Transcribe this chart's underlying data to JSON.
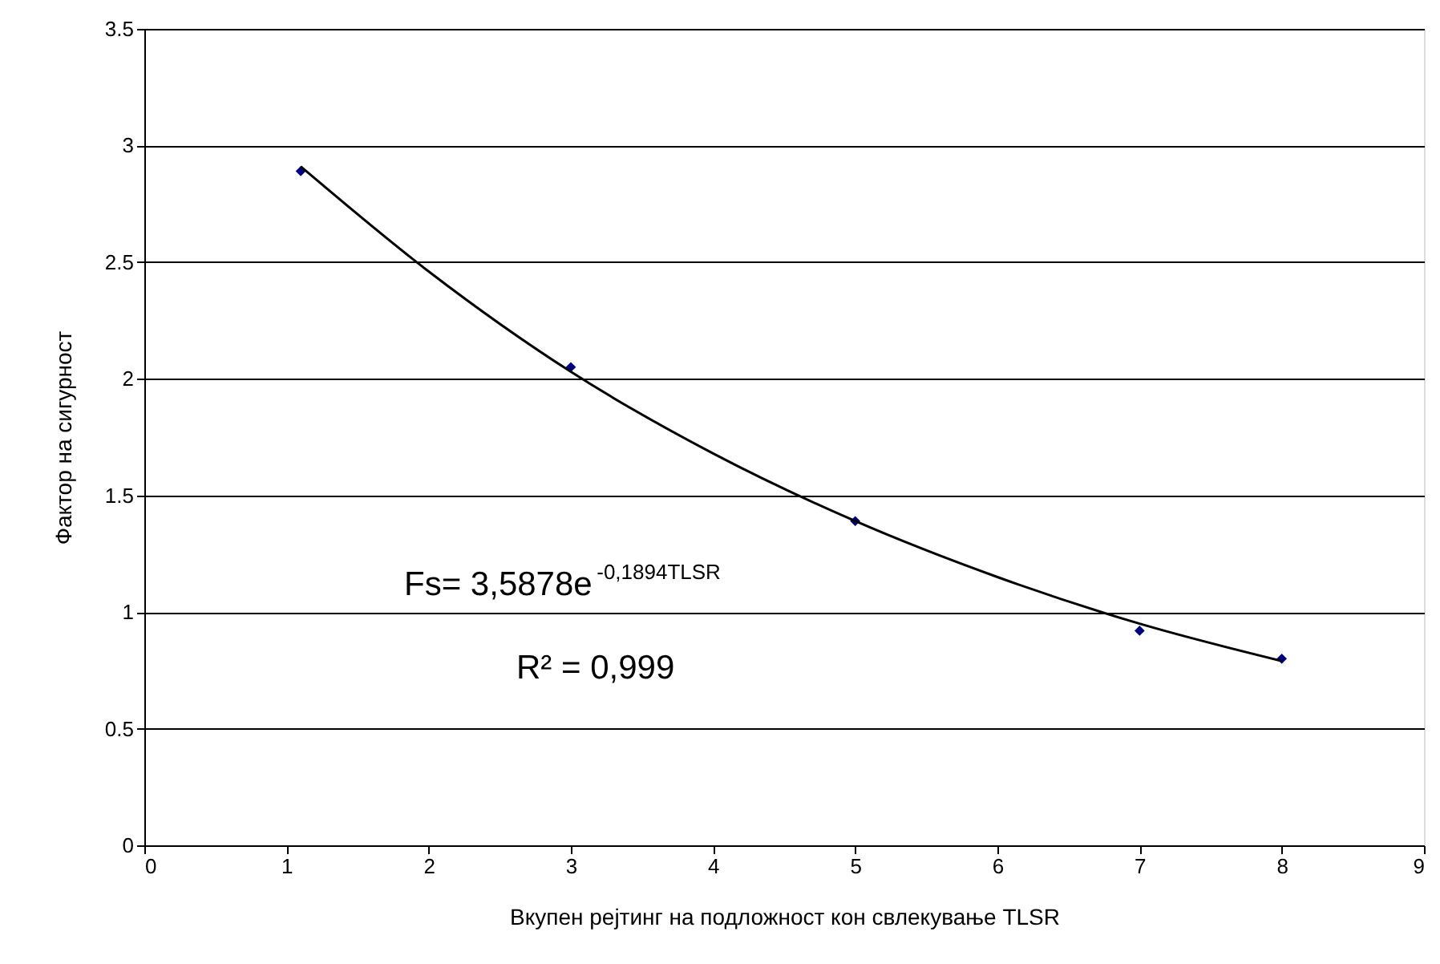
{
  "chart_data": {
    "type": "scatter",
    "xlabel": "Вкупен рејтинг на подложност кон свлекување TLSR",
    "ylabel": "Фактор на сигурност",
    "xlim": [
      0,
      9
    ],
    "xticks": [
      0,
      1,
      2,
      3,
      4,
      5,
      6,
      7,
      8,
      9
    ],
    "ylim": [
      0,
      3.5
    ],
    "yticks": [
      0,
      0.5,
      1,
      1.5,
      2,
      2.5,
      3,
      3.5
    ],
    "grid": "y",
    "series": [
      {
        "type": "scatter",
        "marker": "diamond",
        "color": "#000080",
        "x": [
          1.1,
          3,
          5,
          7,
          8
        ],
        "values": [
          2.89,
          2.05,
          1.39,
          0.92,
          0.8
        ]
      },
      {
        "type": "line",
        "marker": "none",
        "line_style": "solid",
        "color": "#000000",
        "x": [
          1.1,
          2,
          3,
          4,
          5,
          6,
          7,
          8
        ],
        "values": [
          2.91,
          2.46,
          2.03,
          1.68,
          1.39,
          1.15,
          0.95,
          0.79
        ]
      }
    ],
    "annotations": [
      "Fs= 3,5878e$^{-0,1894TLSR}$",
      "R² = 0,999"
    ]
  }
}
